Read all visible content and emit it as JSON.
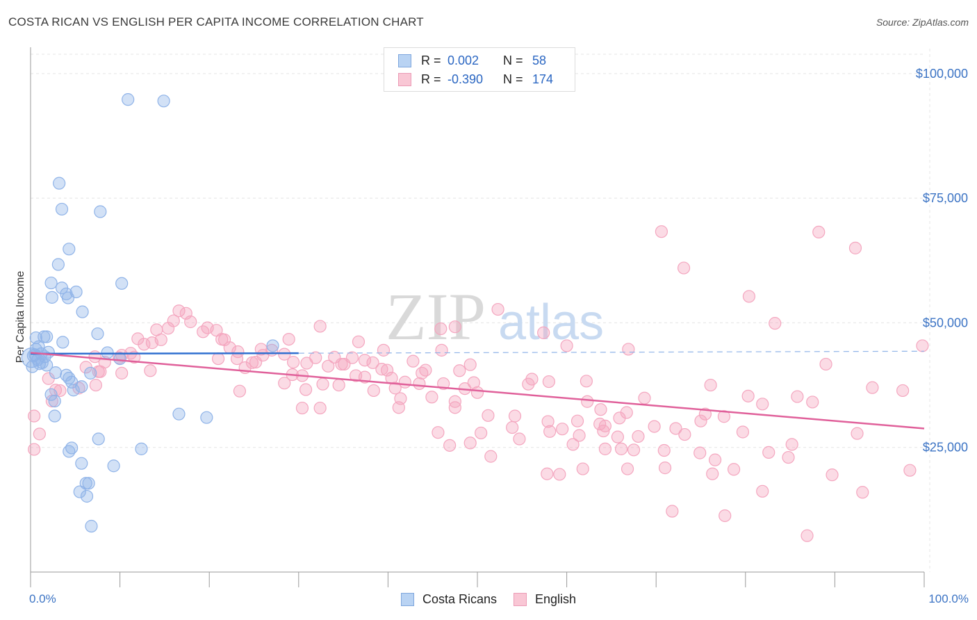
{
  "chart_data": {
    "type": "scatter",
    "title": "COSTA RICAN VS ENGLISH PER CAPITA INCOME CORRELATION CHART",
    "source": "Source: ZipAtlas.com",
    "ylabel": "Per Capita Income",
    "xlabel": "",
    "xlim": [
      0,
      100
    ],
    "ylim": [
      0,
      105000
    ],
    "x_tick_labels": {
      "min": "0.0%",
      "max": "100.0%"
    },
    "y_ticks": [
      {
        "value": 25000,
        "label": "$25,000"
      },
      {
        "value": 50000,
        "label": "$50,000"
      },
      {
        "value": 75000,
        "label": "$75,000"
      },
      {
        "value": 100000,
        "label": "$100,000"
      }
    ],
    "watermark": {
      "part1": "ZIP",
      "part2": "atlas"
    },
    "stats": [
      {
        "r_label": "R =",
        "r_value": "0.002",
        "n_label": "N =",
        "n_value": "58"
      },
      {
        "r_label": "R =",
        "r_value": "-0.390",
        "n_label": "N =",
        "n_value": "174"
      }
    ],
    "series": [
      {
        "name": "Costa Ricans",
        "color": "#8fb3e8",
        "line_color": "#2f6fd0",
        "trend": {
          "x0": 0,
          "y0": 43800,
          "x1": 30,
          "y1": 43900,
          "dashed_to_x": 100,
          "dashed_to_y": 44300
        },
        "points": [
          [
            10.9,
            94800
          ],
          [
            14.9,
            94500
          ],
          [
            3.2,
            78000
          ],
          [
            3.5,
            72800
          ],
          [
            7.8,
            72300
          ],
          [
            4.3,
            64800
          ],
          [
            3.1,
            61700
          ],
          [
            2.3,
            58000
          ],
          [
            10.2,
            57900
          ],
          [
            3.5,
            57000
          ],
          [
            5.1,
            56200
          ],
          [
            4.0,
            55800
          ],
          [
            4.2,
            55000
          ],
          [
            2.4,
            55100
          ],
          [
            5.8,
            52200
          ],
          [
            7.5,
            47800
          ],
          [
            1.5,
            47200
          ],
          [
            1.8,
            47200
          ],
          [
            0.6,
            47000
          ],
          [
            3.6,
            46100
          ],
          [
            0.9,
            45200
          ],
          [
            27.1,
            45400
          ],
          [
            0.6,
            44700
          ],
          [
            2.0,
            44100
          ],
          [
            8.6,
            44000
          ],
          [
            1.2,
            43800
          ],
          [
            0.5,
            43600
          ],
          [
            0.3,
            43400
          ],
          [
            1.6,
            43200
          ],
          [
            0.8,
            42600
          ],
          [
            10.0,
            42800
          ],
          [
            1.3,
            42000
          ],
          [
            1.0,
            41800
          ],
          [
            1.8,
            41500
          ],
          [
            0.2,
            41200
          ],
          [
            2.8,
            40000
          ],
          [
            6.7,
            39900
          ],
          [
            4.0,
            39500
          ],
          [
            4.3,
            38900
          ],
          [
            4.6,
            38100
          ],
          [
            5.7,
            37200
          ],
          [
            4.8,
            36500
          ],
          [
            2.3,
            35600
          ],
          [
            2.7,
            34300
          ],
          [
            2.7,
            31300
          ],
          [
            16.6,
            31700
          ],
          [
            19.7,
            31000
          ],
          [
            7.6,
            26700
          ],
          [
            4.6,
            24900
          ],
          [
            4.3,
            24200
          ],
          [
            12.4,
            24700
          ],
          [
            5.7,
            21800
          ],
          [
            9.3,
            21300
          ],
          [
            6.2,
            17800
          ],
          [
            6.5,
            17800
          ],
          [
            5.5,
            16100
          ],
          [
            6.3,
            15200
          ],
          [
            6.8,
            9200
          ]
        ]
      },
      {
        "name": "English",
        "color": "#f4a6bf",
        "line_color": "#e0609a",
        "trend": {
          "x0": 0,
          "y0": 44000,
          "x1": 100,
          "y1": 28800
        },
        "points": [
          [
            70.6,
            68300
          ],
          [
            88.2,
            68200
          ],
          [
            92.3,
            65000
          ],
          [
            73.1,
            61000
          ],
          [
            80.4,
            55300
          ],
          [
            16.6,
            52400
          ],
          [
            52.3,
            52700
          ],
          [
            17.4,
            51900
          ],
          [
            83.3,
            49900
          ],
          [
            32.4,
            49300
          ],
          [
            47.5,
            49200
          ],
          [
            45.9,
            48800
          ],
          [
            15.4,
            48900
          ],
          [
            14.1,
            48600
          ],
          [
            57.4,
            48000
          ],
          [
            19.3,
            48200
          ],
          [
            12.0,
            46800
          ],
          [
            14.6,
            46600
          ],
          [
            20.8,
            48500
          ],
          [
            19.8,
            49000
          ],
          [
            16.0,
            50400
          ],
          [
            17.9,
            50200
          ],
          [
            21.4,
            46700
          ],
          [
            28.9,
            46700
          ],
          [
            36.7,
            46200
          ],
          [
            13.6,
            46000
          ],
          [
            12.7,
            45700
          ],
          [
            60.0,
            45400
          ],
          [
            66.9,
            44700
          ],
          [
            99.8,
            45400
          ],
          [
            22.3,
            45000
          ],
          [
            25.8,
            44700
          ],
          [
            23.2,
            44200
          ],
          [
            26.0,
            43500
          ],
          [
            11.2,
            43900
          ],
          [
            10.2,
            43500
          ],
          [
            7.2,
            43200
          ],
          [
            9.9,
            43000
          ],
          [
            28.4,
            43700
          ],
          [
            34.0,
            43100
          ],
          [
            36.0,
            43000
          ],
          [
            37.4,
            42500
          ],
          [
            21.0,
            42800
          ],
          [
            25.2,
            42100
          ],
          [
            29.4,
            42100
          ],
          [
            34.8,
            41700
          ],
          [
            8.3,
            42100
          ],
          [
            42.8,
            42300
          ],
          [
            89.0,
            41700
          ],
          [
            6.2,
            41100
          ],
          [
            39.3,
            40700
          ],
          [
            44.2,
            40500
          ],
          [
            48.0,
            40400
          ],
          [
            7.8,
            40200
          ],
          [
            13.4,
            40400
          ],
          [
            10.2,
            39900
          ],
          [
            29.3,
            39600
          ],
          [
            2.0,
            38800
          ],
          [
            37.4,
            39100
          ],
          [
            40.4,
            38900
          ],
          [
            30.4,
            39400
          ],
          [
            56.1,
            38700
          ],
          [
            32.7,
            37700
          ],
          [
            43.5,
            37800
          ],
          [
            41.9,
            38100
          ],
          [
            34.5,
            37500
          ],
          [
            28.4,
            37900
          ],
          [
            38.4,
            36400
          ],
          [
            30.8,
            36600
          ],
          [
            23.4,
            36300
          ],
          [
            58.0,
            38200
          ],
          [
            62.2,
            38300
          ],
          [
            46.2,
            37800
          ],
          [
            7.3,
            37500
          ],
          [
            5.4,
            36900
          ],
          [
            3.3,
            36400
          ],
          [
            2.4,
            34300
          ],
          [
            41.4,
            34800
          ],
          [
            44.9,
            35100
          ],
          [
            47.5,
            34200
          ],
          [
            50.0,
            36000
          ],
          [
            55.7,
            37700
          ],
          [
            76.1,
            37500
          ],
          [
            80.3,
            35300
          ],
          [
            85.8,
            35200
          ],
          [
            94.2,
            37000
          ],
          [
            97.6,
            36400
          ],
          [
            68.7,
            34900
          ],
          [
            62.3,
            34200
          ],
          [
            81.9,
            33700
          ],
          [
            87.5,
            34100
          ],
          [
            41.2,
            33000
          ],
          [
            32.4,
            32900
          ],
          [
            30.4,
            32900
          ],
          [
            47.5,
            33000
          ],
          [
            63.8,
            32600
          ],
          [
            0.4,
            31300
          ],
          [
            54.2,
            31300
          ],
          [
            51.2,
            31400
          ],
          [
            66.7,
            32000
          ],
          [
            65.9,
            30900
          ],
          [
            75.5,
            31700
          ],
          [
            77.6,
            31200
          ],
          [
            63.7,
            29700
          ],
          [
            61.2,
            30300
          ],
          [
            57.9,
            30200
          ],
          [
            53.9,
            29000
          ],
          [
            59.5,
            28700
          ],
          [
            58.1,
            28200
          ],
          [
            64.3,
            29300
          ],
          [
            64.1,
            28300
          ],
          [
            69.8,
            29200
          ],
          [
            75.0,
            30300
          ],
          [
            72.2,
            28800
          ],
          [
            1.0,
            27700
          ],
          [
            50.4,
            27900
          ],
          [
            45.6,
            28000
          ],
          [
            54.7,
            26700
          ],
          [
            61.4,
            27400
          ],
          [
            65.7,
            27100
          ],
          [
            68.0,
            27200
          ],
          [
            73.2,
            27600
          ],
          [
            79.7,
            28100
          ],
          [
            92.5,
            27800
          ],
          [
            49.2,
            25900
          ],
          [
            46.9,
            25400
          ],
          [
            60.7,
            25600
          ],
          [
            66.1,
            24700
          ],
          [
            70.9,
            24400
          ],
          [
            74.9,
            23900
          ],
          [
            82.6,
            24000
          ],
          [
            0.4,
            24600
          ],
          [
            64.3,
            24700
          ],
          [
            67.5,
            24500
          ],
          [
            76.6,
            22500
          ],
          [
            84.8,
            23000
          ],
          [
            51.5,
            23200
          ],
          [
            57.8,
            19700
          ],
          [
            61.8,
            20700
          ],
          [
            66.8,
            20700
          ],
          [
            71.0,
            20900
          ],
          [
            76.3,
            19700
          ],
          [
            89.7,
            19500
          ],
          [
            78.7,
            20600
          ],
          [
            98.4,
            20400
          ],
          [
            93.1,
            16000
          ],
          [
            81.9,
            16200
          ],
          [
            71.8,
            12200
          ],
          [
            77.7,
            11300
          ],
          [
            86.9,
            7300
          ],
          [
            59.2,
            19600
          ],
          [
            85.2,
            25600
          ],
          [
            39.5,
            44500
          ],
          [
            27.0,
            44500
          ],
          [
            46.0,
            44500
          ],
          [
            24.0,
            41000
          ],
          [
            33.3,
            41300
          ],
          [
            49.2,
            41600
          ],
          [
            23.1,
            42800
          ],
          [
            21.7,
            46600
          ],
          [
            39.9,
            40500
          ],
          [
            38.3,
            42000
          ],
          [
            30.9,
            41900
          ],
          [
            35.1,
            41700
          ],
          [
            24.8,
            42000
          ],
          [
            31.9,
            43000
          ],
          [
            43.8,
            39900
          ],
          [
            36.4,
            39400
          ],
          [
            49.6,
            38000
          ],
          [
            48.6,
            36800
          ],
          [
            40.8,
            36900
          ],
          [
            7.6,
            40200
          ],
          [
            2.8,
            36500
          ],
          [
            11.6,
            43100
          ]
        ]
      }
    ]
  }
}
